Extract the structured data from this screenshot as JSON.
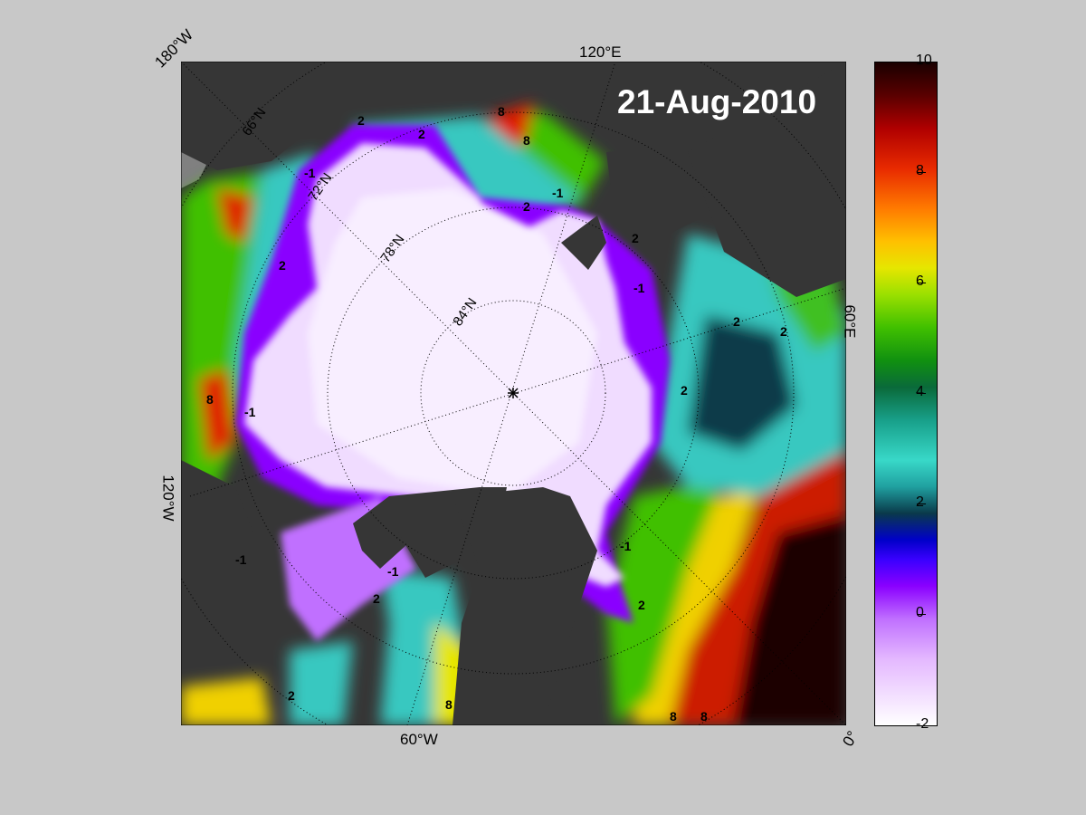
{
  "map": {
    "date": "21-Aug-2010",
    "edge_labels": {
      "lon_180w": "180°W",
      "lon_120e": "120°E",
      "lon_60e": "60°E",
      "lon_120w": "120°W",
      "lon_60w": "60°W",
      "lon_0": "0°"
    },
    "latitude_labels": [
      "66°N",
      "72°N",
      "78°N",
      "84°N"
    ],
    "contour_labels": [
      "-1",
      "2",
      "2",
      "-1",
      "2",
      "8",
      "2",
      "2",
      "-1",
      "2",
      "2",
      "-1",
      "8",
      "2",
      "-1",
      "2",
      "2",
      "-1",
      "8",
      "8",
      "-1",
      "2",
      "8",
      "8"
    ],
    "colorbar": {
      "tick_labels": [
        "10",
        "8",
        "6",
        "4",
        "2",
        "0",
        "-2"
      ]
    },
    "colors": {
      "land": "#363636",
      "ice_shelf": "#808080",
      "background": "#c8c8c8"
    }
  }
}
